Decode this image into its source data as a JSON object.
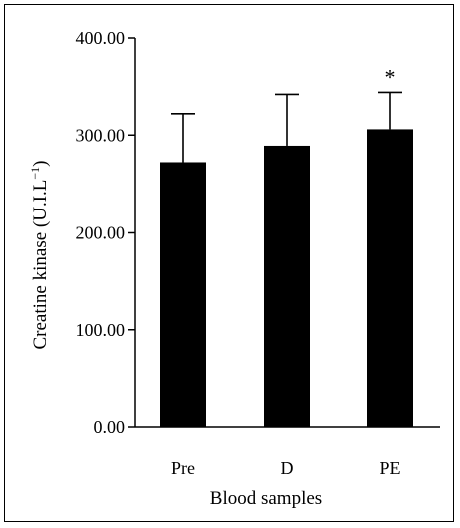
{
  "chart_data": {
    "type": "bar",
    "title": "",
    "xlabel": "Blood samples",
    "ylabel": "Creatine kinase (U.I.L",
    "ylabel_superscript": "−1",
    "ylabel_suffix": ")",
    "categories": [
      "Pre",
      "D",
      "PE"
    ],
    "values": [
      272,
      289,
      306
    ],
    "error_upper": [
      322,
      342,
      344
    ],
    "annotations": [
      "",
      "",
      "*"
    ],
    "ylim": [
      0,
      400
    ],
    "yticks": [
      0,
      100,
      200,
      300,
      400
    ],
    "ytick_labels": [
      "0.00",
      "100.00",
      "200.00",
      "300.00",
      "400.00"
    ],
    "grid": false,
    "bar_color": "#000000"
  }
}
